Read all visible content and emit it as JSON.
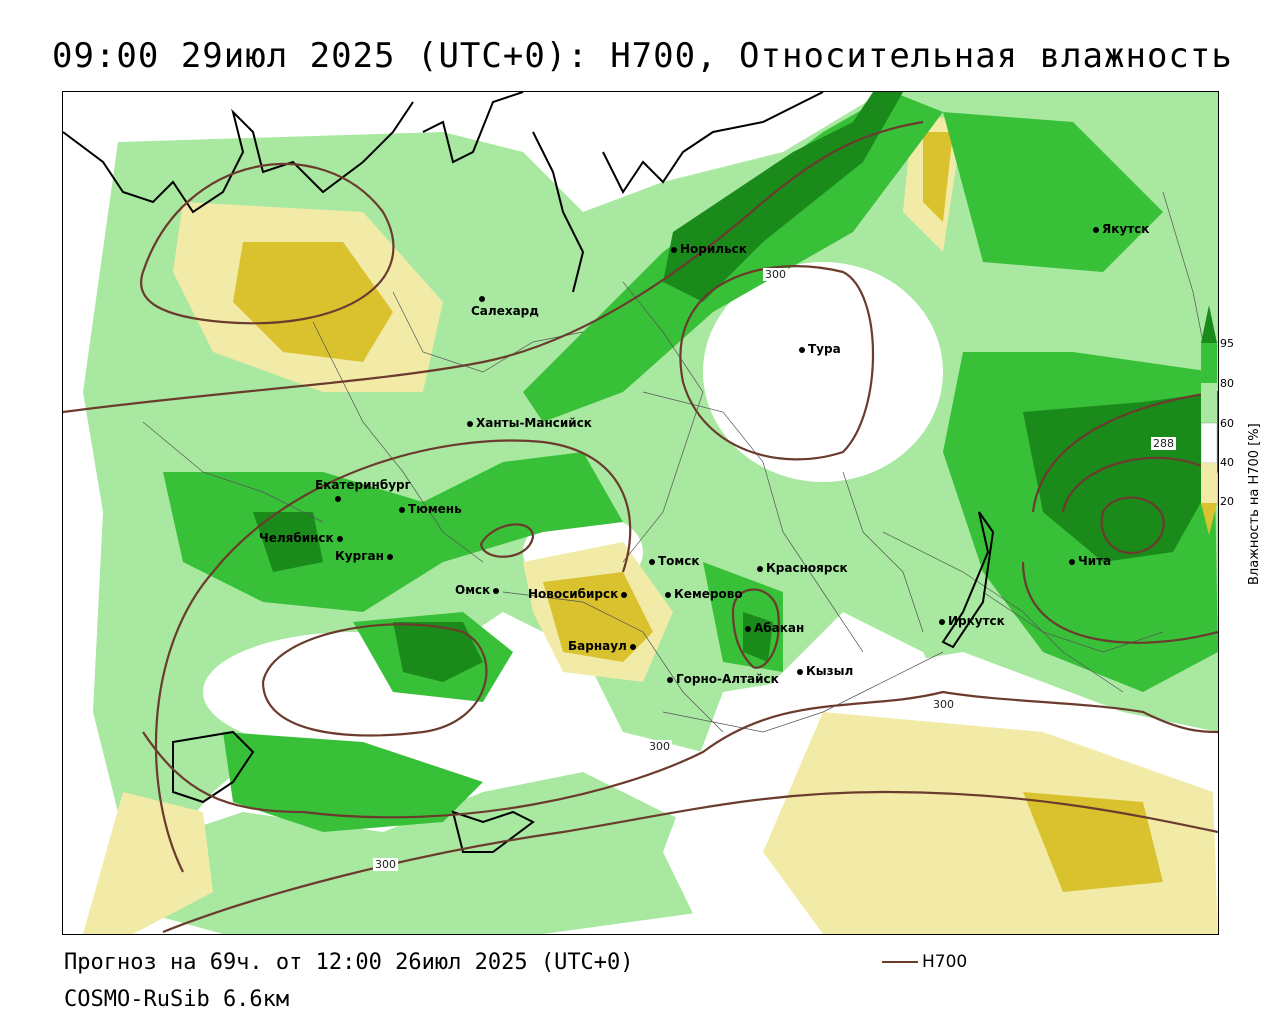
{
  "title": "09:00 29июл 2025 (UTC+0): H700, Относительная влажность",
  "forecast": "Прогноз на 69ч. от 12:00 26июл 2025 (UTC+0)",
  "model": "COSMO-RuSib 6.6км",
  "legend": {
    "contour_label": "H700",
    "contour_color": "#6b3b2e"
  },
  "colorbar": {
    "title": "Влажность на H700 [%]",
    "ticks": [
      "95",
      "80",
      "60",
      "40",
      "20"
    ],
    "colors": {
      "c95": "#1a8a1a",
      "c80": "#38c038",
      "c60": "#a8e8a0",
      "c40": "#ffffff",
      "c20": "#f2eba8",
      "c0": "#d9c22e"
    }
  },
  "contour_labels": [
    "300",
    "300",
    "300",
    "300",
    "288"
  ],
  "cities": [
    {
      "name": "Якутск"
    },
    {
      "name": "Норильск"
    },
    {
      "name": "Салехард"
    },
    {
      "name": "Тура"
    },
    {
      "name": "Ханты-Мансийск"
    },
    {
      "name": "Екатеринбург"
    },
    {
      "name": "Тюмень"
    },
    {
      "name": "Челябинск"
    },
    {
      "name": "Курган"
    },
    {
      "name": "Омск"
    },
    {
      "name": "Новосибирск"
    },
    {
      "name": "Томск"
    },
    {
      "name": "Кемерово"
    },
    {
      "name": "Красноярск"
    },
    {
      "name": "Абакан"
    },
    {
      "name": "Барнаул"
    },
    {
      "name": "Горно-Алтайск"
    },
    {
      "name": "Кызыл"
    },
    {
      "name": "Иркутск"
    },
    {
      "name": "Чита"
    }
  ]
}
